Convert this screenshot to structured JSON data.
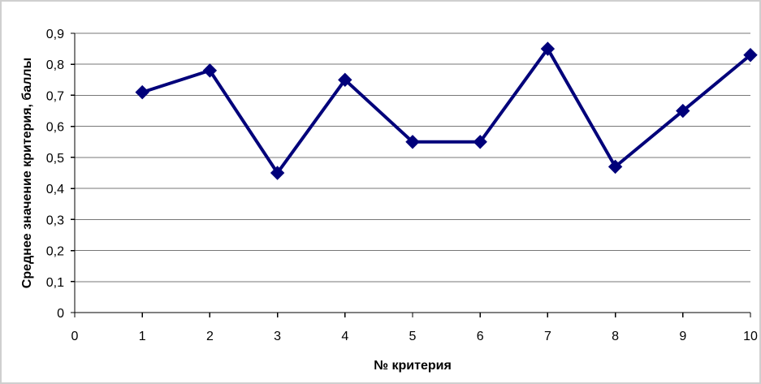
{
  "chart_data": {
    "type": "line",
    "title": "",
    "xlabel": "№ критерия",
    "ylabel": "Среднее значение критерия, баллы",
    "xlim": [
      0,
      10
    ],
    "ylim": [
      0,
      0.9
    ],
    "x_ticks": [
      0,
      1,
      2,
      3,
      4,
      5,
      6,
      7,
      8,
      9,
      10
    ],
    "x_tick_labels": [
      "0",
      "1",
      "2",
      "3",
      "4",
      "5",
      "6",
      "7",
      "8",
      "9",
      "10"
    ],
    "y_ticks": [
      0,
      0.1,
      0.2,
      0.3,
      0.4,
      0.5,
      0.6,
      0.7,
      0.8,
      0.9
    ],
    "y_tick_labels": [
      "0",
      "0,1",
      "0,2",
      "0,3",
      "0,4",
      "0,5",
      "0,6",
      "0,7",
      "0,8",
      "0,9"
    ],
    "grid": true,
    "legend": "none",
    "colors": {
      "series": "#00007a",
      "grid": "#777777",
      "frame": "#cfcfcf"
    },
    "series": [
      {
        "x": [
          1,
          2,
          3,
          4,
          5,
          6,
          7,
          8,
          9,
          10
        ],
        "values": [
          0.71,
          0.78,
          0.45,
          0.75,
          0.55,
          0.55,
          0.85,
          0.47,
          0.65,
          0.83
        ],
        "marker": "diamond"
      }
    ]
  }
}
